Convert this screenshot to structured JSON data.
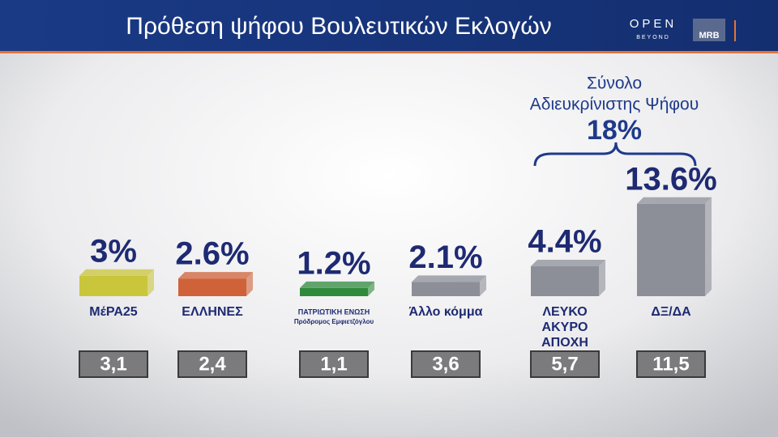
{
  "header": {
    "title": "Πρόθεση ψήφου Βουλευτικών Εκλογών",
    "brand": "OPEN",
    "brand_sub": "BEYOND",
    "pollster": "MRB"
  },
  "chart_data": {
    "type": "bar",
    "categories": [
      [
        "ΜέΡΑ25"
      ],
      [
        "ΕΛΛΗΝΕΣ"
      ],
      [
        "ΠΑΤΡΙΩΤΙΚΗ ΕΝΩΣΗ",
        "Πρόδρομος Εμφιετζόγλου"
      ],
      [
        "Άλλο κόμμα"
      ],
      [
        "ΛΕΥΚΟ",
        "ΑΚΥΡΟ",
        "ΑΠΟΧΗ"
      ],
      [
        "ΔΞ/ΔΑ"
      ]
    ],
    "values": [
      3,
      2.6,
      1.2,
      2.1,
      4.4,
      13.6
    ],
    "value_labels": [
      "3%",
      "2.6%",
      "1.2%",
      "2.1%",
      "4.4%",
      "13.6%"
    ],
    "colors": [
      "#c9c63c",
      "#cf6238",
      "#2f8a3c",
      "#8c8f98",
      "#8c8f98",
      "#8c8f98"
    ],
    "previous": {
      "values": [
        3.1,
        2.4,
        1.1,
        3.6,
        5.7,
        11.5
      ],
      "value_labels": [
        "3,1",
        "2,4",
        "1,1",
        "3,6",
        "5,7",
        "11,5"
      ]
    },
    "annotation": {
      "lines": [
        "Σύνολο",
        "Αδιευκρίνιστης Ψήφου"
      ],
      "value": 18,
      "value_label": "18%"
    }
  }
}
